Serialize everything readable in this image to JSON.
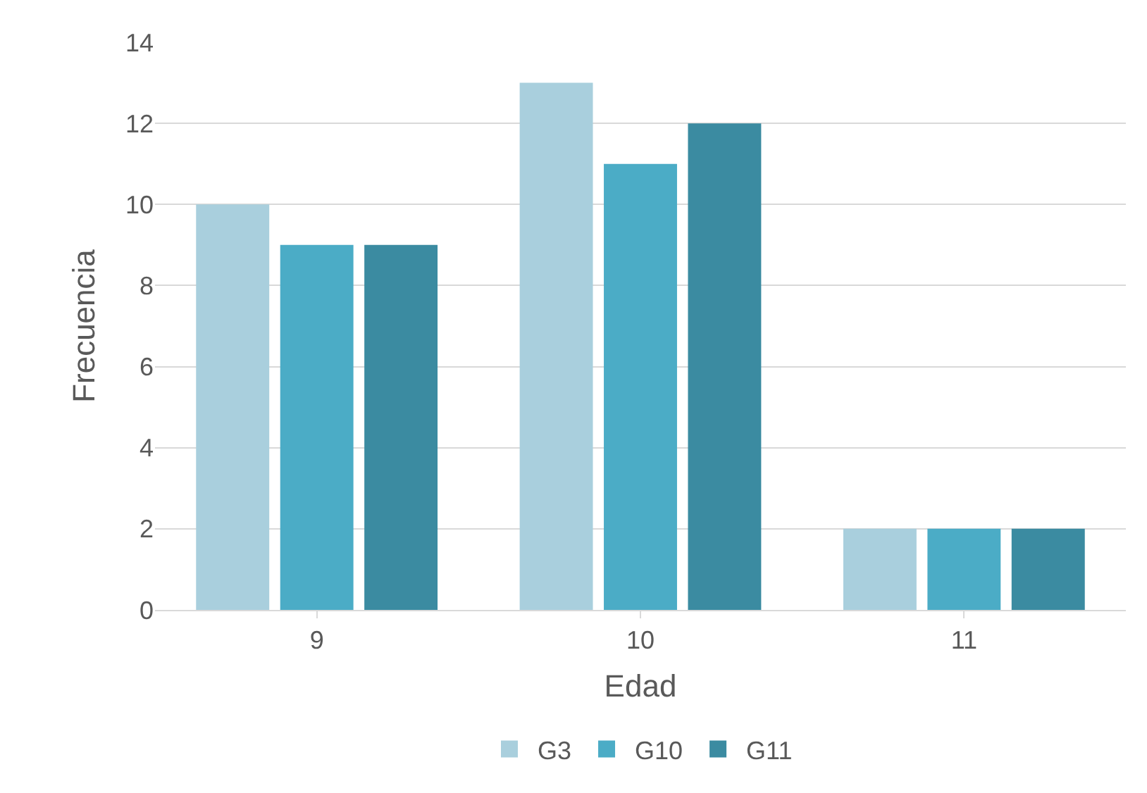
{
  "chart_data": {
    "type": "bar",
    "xlabel": "Edad",
    "ylabel": "Frecuencia",
    "categories": [
      "9",
      "10",
      "11"
    ],
    "series": [
      {
        "name": "G3",
        "color": "#a9cfdd",
        "values": [
          10,
          13,
          2
        ]
      },
      {
        "name": "G10",
        "color": "#4bacc6",
        "values": [
          9,
          11,
          2
        ]
      },
      {
        "name": "G11",
        "color": "#3b8ba1",
        "values": [
          9,
          12,
          2
        ]
      }
    ],
    "ylim": [
      0,
      14
    ],
    "yticks": [
      0,
      2,
      4,
      6,
      8,
      10,
      12,
      14
    ],
    "grid": "y",
    "legend": "bottom"
  }
}
